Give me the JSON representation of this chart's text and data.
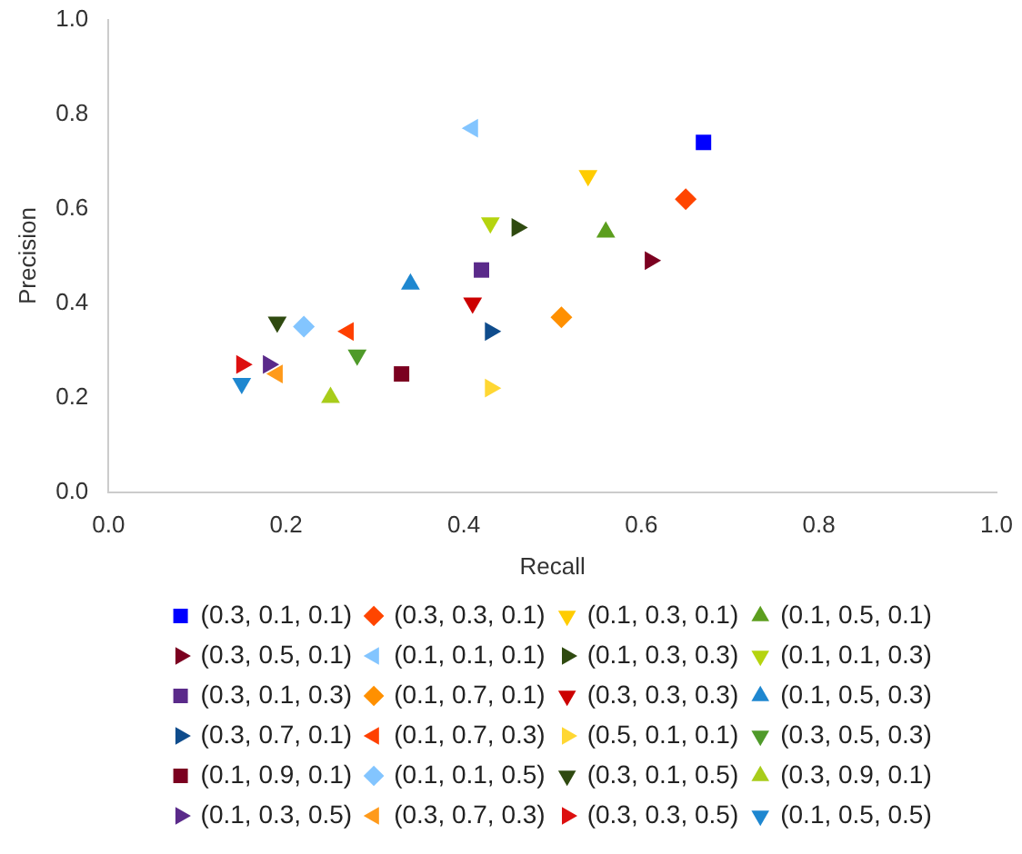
{
  "chart_data": {
    "type": "scatter",
    "xlabel": "Recall",
    "ylabel": "Precision",
    "xlim": [
      0,
      1
    ],
    "ylim": [
      0,
      1
    ],
    "xticks": [
      {
        "value": 0,
        "label": "0.0"
      },
      {
        "value": 0.2,
        "label": "0.2"
      },
      {
        "value": 0.4,
        "label": "0.4"
      },
      {
        "value": 0.6,
        "label": "0.6"
      },
      {
        "value": 0.8,
        "label": "0.8"
      },
      {
        "value": 1,
        "label": "1.0"
      }
    ],
    "yticks": [
      {
        "value": 0,
        "label": "0.0"
      },
      {
        "value": 0.2,
        "label": "0.2"
      },
      {
        "value": 0.4,
        "label": "0.4"
      },
      {
        "value": 0.6,
        "label": "0.6"
      },
      {
        "value": 0.8,
        "label": "0.8"
      },
      {
        "value": 1,
        "label": "1.0"
      }
    ],
    "grid": false,
    "legend": "bottom",
    "series": [
      {
        "name": "(0.3, 0.1, 0.1)",
        "color": "#0000ff",
        "marker": "square",
        "x": [
          0.67
        ],
        "values": [
          0.74
        ]
      },
      {
        "name": "(0.3, 0.3, 0.1)",
        "color": "#ff4500",
        "marker": "diamond",
        "x": [
          0.65
        ],
        "values": [
          0.62
        ]
      },
      {
        "name": "(0.1, 0.3, 0.1)",
        "color": "#ffcc00",
        "marker": "triangle-down",
        "x": [
          0.54
        ],
        "values": [
          0.67
        ]
      },
      {
        "name": "(0.1, 0.5, 0.1)",
        "color": "#5c9e1e",
        "marker": "triangle",
        "x": [
          0.56
        ],
        "values": [
          0.55
        ]
      },
      {
        "name": "(0.3, 0.5, 0.1)",
        "color": "#7b0020",
        "marker": "triangle-right",
        "x": [
          0.61
        ],
        "values": [
          0.49
        ]
      },
      {
        "name": "(0.1, 0.1, 0.1)",
        "color": "#83c5ff",
        "marker": "triangle-left",
        "x": [
          0.41
        ],
        "values": [
          0.77
        ]
      },
      {
        "name": "(0.1, 0.3, 0.3)",
        "color": "#2f4a10",
        "marker": "triangle-right",
        "x": [
          0.46
        ],
        "values": [
          0.56
        ]
      },
      {
        "name": "(0.1, 0.1, 0.3)",
        "color": "#b5d40f",
        "marker": "triangle-down",
        "x": [
          0.43
        ],
        "values": [
          0.57
        ]
      },
      {
        "name": "(0.3, 0.1, 0.3)",
        "color": "#5a2a8a",
        "marker": "square",
        "x": [
          0.42
        ],
        "values": [
          0.47
        ]
      },
      {
        "name": "(0.1, 0.7, 0.1)",
        "color": "#ff9000",
        "marker": "diamond",
        "x": [
          0.51
        ],
        "values": [
          0.37
        ]
      },
      {
        "name": "(0.3, 0.3, 0.3)",
        "color": "#cc0000",
        "marker": "triangle-down",
        "x": [
          0.41
        ],
        "values": [
          0.4
        ]
      },
      {
        "name": "(0.1, 0.5, 0.3)",
        "color": "#1e87d0",
        "marker": "triangle",
        "x": [
          0.34
        ],
        "values": [
          0.44
        ]
      },
      {
        "name": "(0.3, 0.7, 0.1)",
        "color": "#0f4c8c",
        "marker": "triangle-right",
        "x": [
          0.43
        ],
        "values": [
          0.34
        ]
      },
      {
        "name": "(0.1, 0.7, 0.3)",
        "color": "#ff4000",
        "marker": "triangle-left",
        "x": [
          0.27
        ],
        "values": [
          0.34
        ]
      },
      {
        "name": "(0.5, 0.1, 0.1)",
        "color": "#ffd733",
        "marker": "triangle-right",
        "x": [
          0.43
        ],
        "values": [
          0.22
        ]
      },
      {
        "name": "(0.3, 0.5, 0.3)",
        "color": "#4f9a2a",
        "marker": "triangle-down",
        "x": [
          0.28
        ],
        "values": [
          0.29
        ]
      },
      {
        "name": "(0.1, 0.9, 0.1)",
        "color": "#7b0020",
        "marker": "square",
        "x": [
          0.33
        ],
        "values": [
          0.25
        ]
      },
      {
        "name": "(0.1, 0.1, 0.5)",
        "color": "#83c5ff",
        "marker": "diamond",
        "x": [
          0.22
        ],
        "values": [
          0.35
        ]
      },
      {
        "name": "(0.3, 0.1, 0.5)",
        "color": "#2f4a10",
        "marker": "triangle-down",
        "x": [
          0.19
        ],
        "values": [
          0.36
        ]
      },
      {
        "name": "(0.3, 0.9, 0.1)",
        "color": "#a8cc1a",
        "marker": "triangle",
        "x": [
          0.25
        ],
        "values": [
          0.2
        ]
      },
      {
        "name": "(0.1, 0.3, 0.5)",
        "color": "#5a2a8a",
        "marker": "triangle-right",
        "x": [
          0.18
        ],
        "values": [
          0.27
        ]
      },
      {
        "name": "(0.3, 0.7, 0.3)",
        "color": "#ff9a1a",
        "marker": "triangle-left",
        "x": [
          0.19
        ],
        "values": [
          0.25
        ]
      },
      {
        "name": "(0.3, 0.3, 0.5)",
        "color": "#dd1010",
        "marker": "triangle-right",
        "x": [
          0.15
        ],
        "values": [
          0.27
        ]
      },
      {
        "name": "(0.1, 0.5, 0.5)",
        "color": "#1e87d0",
        "marker": "triangle-down",
        "x": [
          0.15
        ],
        "values": [
          0.23
        ]
      }
    ]
  }
}
